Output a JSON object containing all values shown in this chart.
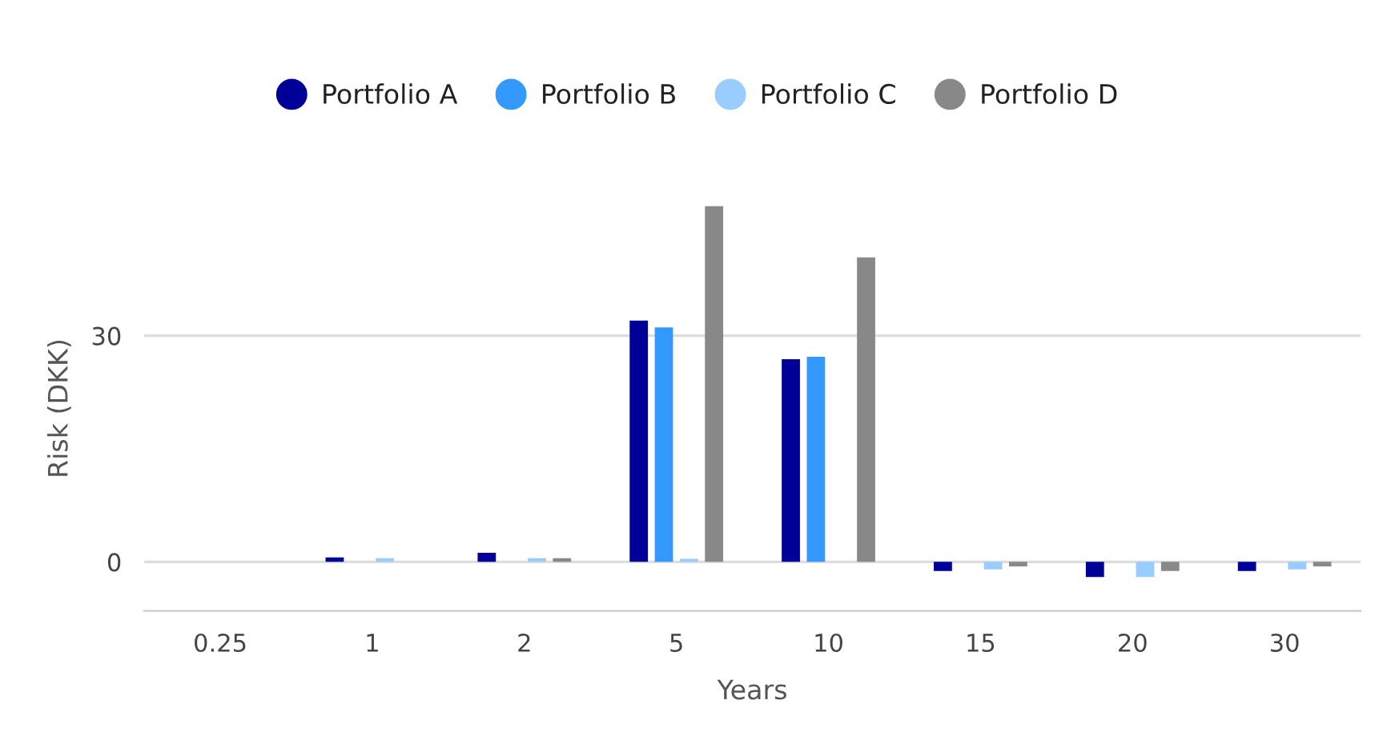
{
  "chart_data": {
    "type": "bar",
    "xlabel": "Years",
    "ylabel": "Risk (DKK)",
    "categories": [
      "0.25",
      "1",
      "2",
      "5",
      "10",
      "15",
      "20",
      "30"
    ],
    "series": [
      {
        "name": "Portfolio A",
        "color": "#000099",
        "values": [
          0,
          0.6,
          1.2,
          32.0,
          26.9,
          -1.2,
          -2.0,
          -1.2
        ]
      },
      {
        "name": "Portfolio B",
        "color": "#3399ff",
        "values": [
          0,
          0,
          0,
          31.1,
          27.2,
          0,
          0,
          0
        ]
      },
      {
        "name": "Portfolio C",
        "color": "#99ccff",
        "values": [
          0,
          0.5,
          0.5,
          0.4,
          0,
          -1.0,
          -2.0,
          -1.0
        ]
      },
      {
        "name": "Portfolio D",
        "color": "#888888",
        "values": [
          0,
          0,
          0.5,
          47.2,
          40.4,
          -0.6,
          -1.2,
          -0.6
        ]
      }
    ],
    "ylim": [
      -6.5,
      47.2
    ],
    "yticks": [
      0,
      30
    ],
    "grid": "y",
    "legend": "top",
    "marker": "circle"
  }
}
